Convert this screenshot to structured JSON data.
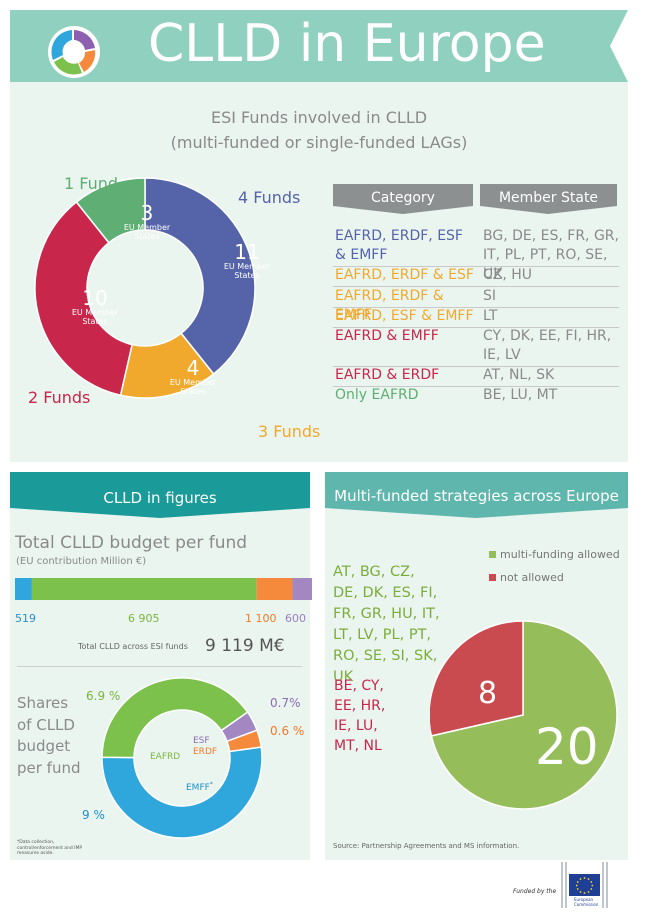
{
  "header": {
    "title": "CLLD in Europe",
    "logo_icon": "clld-ring-logo-icon",
    "banner_color": "#8fd0be"
  },
  "esi_section": {
    "title_line1": "ESI Funds involved in CLLD",
    "title_line2": "(multi-funded or single-funded LAGs)",
    "chart_data": {
      "type": "pie",
      "style": "donut",
      "slices": [
        {
          "label": "4 Funds",
          "value": 11,
          "unit": "EU Member States",
          "color": "#5563a8"
        },
        {
          "label": "3 Funds",
          "value": 4,
          "unit": "EU Member States",
          "color": "#f0a92d"
        },
        {
          "label": "2 Funds",
          "value": 10,
          "unit": "EU Member States",
          "color": "#c8264a"
        },
        {
          "label": "1 Fund",
          "value": 3,
          "unit": "EU Member States",
          "color": "#5fae73"
        }
      ]
    },
    "table": {
      "headers": [
        "Category",
        "Member State"
      ],
      "rows": [
        {
          "category": "EAFRD, ERDF, ESF & EMFF",
          "states": "BG, DE, ES, FR, GR, IT, PL, PT, RO, SE, UK",
          "color": "#5563a8"
        },
        {
          "category": "EAFRD, ERDF & ESF",
          "states": "CZ, HU",
          "color": "#f0a92d"
        },
        {
          "category": "EAFRD, ERDF & EMFF",
          "states": "SI",
          "color": "#f0a92d"
        },
        {
          "category": "EAFRD, ESF & EMFF",
          "states": "LT",
          "color": "#f0a92d"
        },
        {
          "category": "EAFRD & EMFF",
          "states": "CY, DK, EE, FI, HR, IE, LV",
          "color": "#c8264a"
        },
        {
          "category": "EAFRD & ERDF",
          "states": "AT, NL, SK",
          "color": "#c8264a"
        },
        {
          "category": "Only EAFRD",
          "states": "BE, LU, MT",
          "color": "#5fae73"
        }
      ]
    }
  },
  "figures_section": {
    "title": "CLLD in figures",
    "budget_title": "Total CLLD budget per fund",
    "budget_subtitle": "(EU contribution Million €)",
    "bar_chart": {
      "type": "bar",
      "style": "stacked-horizontal",
      "segments": [
        {
          "value": 519,
          "label": "519",
          "color": "#2fa7dc"
        },
        {
          "value": 6905,
          "label": "6 905",
          "color": "#7cc14b"
        },
        {
          "value": 1100,
          "label": "1 100",
          "color": "#f58a3c"
        },
        {
          "value": 600,
          "label": "600",
          "color": "#a287c2"
        }
      ]
    },
    "total_label": "Total CLLD across ESI funds",
    "total_value": "9 119 M€",
    "shares_title": "Shares of CLLD budget per fund",
    "shares_chart": {
      "type": "pie",
      "style": "donut",
      "slices": [
        {
          "name": "EAFRD",
          "label": "6.9 %",
          "value": 6.9,
          "color": "#7cc14b"
        },
        {
          "name": "ESF",
          "label": "0.7%",
          "value": 0.7,
          "color": "#a287c2"
        },
        {
          "name": "ERDF",
          "label": "0.6 %",
          "value": 0.6,
          "color": "#f58a3c"
        },
        {
          "name": "EMFF",
          "label": "9 %",
          "value": 9,
          "color": "#2fa7dc"
        }
      ]
    },
    "footnote": "*Data collection, control/enforcement and IMP measures aside.",
    "emff_star": "*"
  },
  "multi_section": {
    "title": "Multi-funded strategies across Europe",
    "allowed_list": "AT, BG, CZ, DE, DK, ES, FI, FR, GR, HU, IT, LT, LV, PL, PT, RO, SE, SI, SK, UK",
    "not_allowed_list": "BE, CY, EE, HR, IE, LU, MT, NL",
    "legend": [
      {
        "label": "multi-funding allowed",
        "color": "#95bd5a"
      },
      {
        "label": "not allowed",
        "color": "#c94b4f"
      }
    ],
    "chart_data": {
      "type": "pie",
      "slices": [
        {
          "label": "multi-funding allowed",
          "value": 20,
          "color": "#95bd5a"
        },
        {
          "label": "not allowed",
          "value": 8,
          "color": "#c94b4f"
        }
      ]
    },
    "source": "Source: Partnership Agreements and MS information."
  },
  "footer": {
    "funded_by": "Funded by the",
    "logo_icon": "eu-flag-icon",
    "commission_line1": "European",
    "commission_line2": "Commission"
  }
}
